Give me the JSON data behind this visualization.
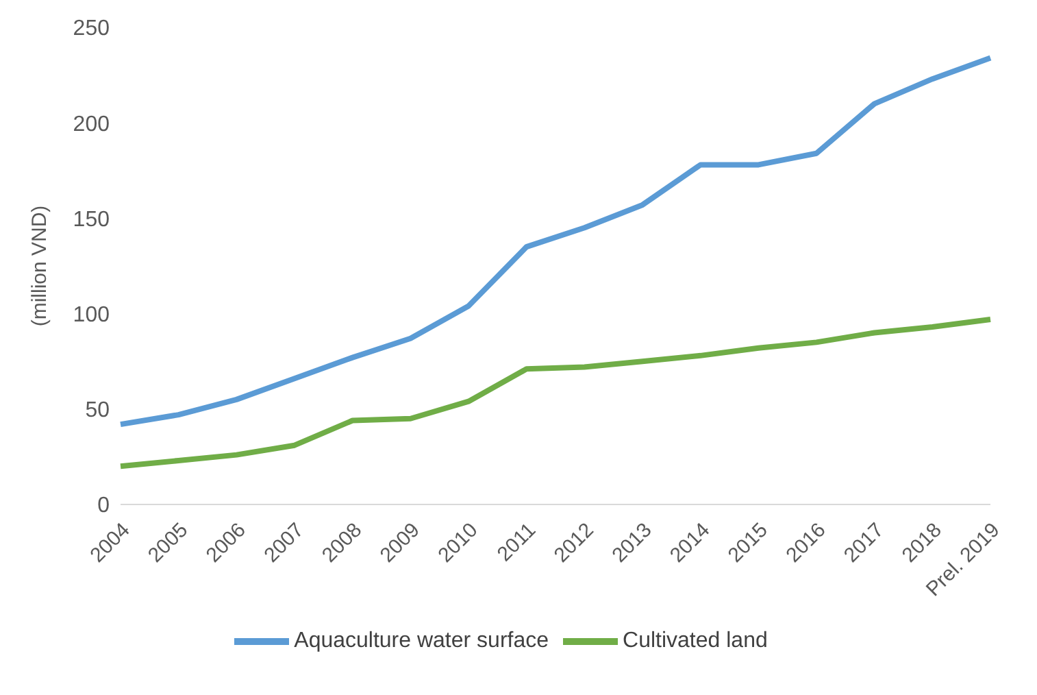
{
  "chart_data": {
    "type": "line",
    "ylabel": "(million VND)",
    "categories": [
      "2004",
      "2005",
      "2006",
      "2007",
      "2008",
      "2009",
      "2010",
      "2011",
      "2012",
      "2013",
      "2014",
      "2015",
      "2016",
      "2017",
      "2018",
      "Prel. 2019"
    ],
    "series": [
      {
        "name": "Cultivated land",
        "color": "#70ad47",
        "values": [
          20,
          23,
          26,
          31,
          44,
          45,
          54,
          71,
          72,
          75,
          78,
          82,
          85,
          90,
          93,
          97
        ]
      },
      {
        "name": "Aquaculture water surface",
        "color": "#5b9bd5",
        "values": [
          42,
          47,
          55,
          66,
          77,
          87,
          104,
          135,
          145,
          157,
          178,
          178,
          184,
          210,
          223,
          234
        ]
      }
    ],
    "ylim": [
      0,
      250
    ],
    "yticks": [
      0,
      50,
      100,
      150,
      200,
      250
    ],
    "grid": false,
    "legend": "bottom",
    "marker": "none",
    "line_style": "solid"
  }
}
